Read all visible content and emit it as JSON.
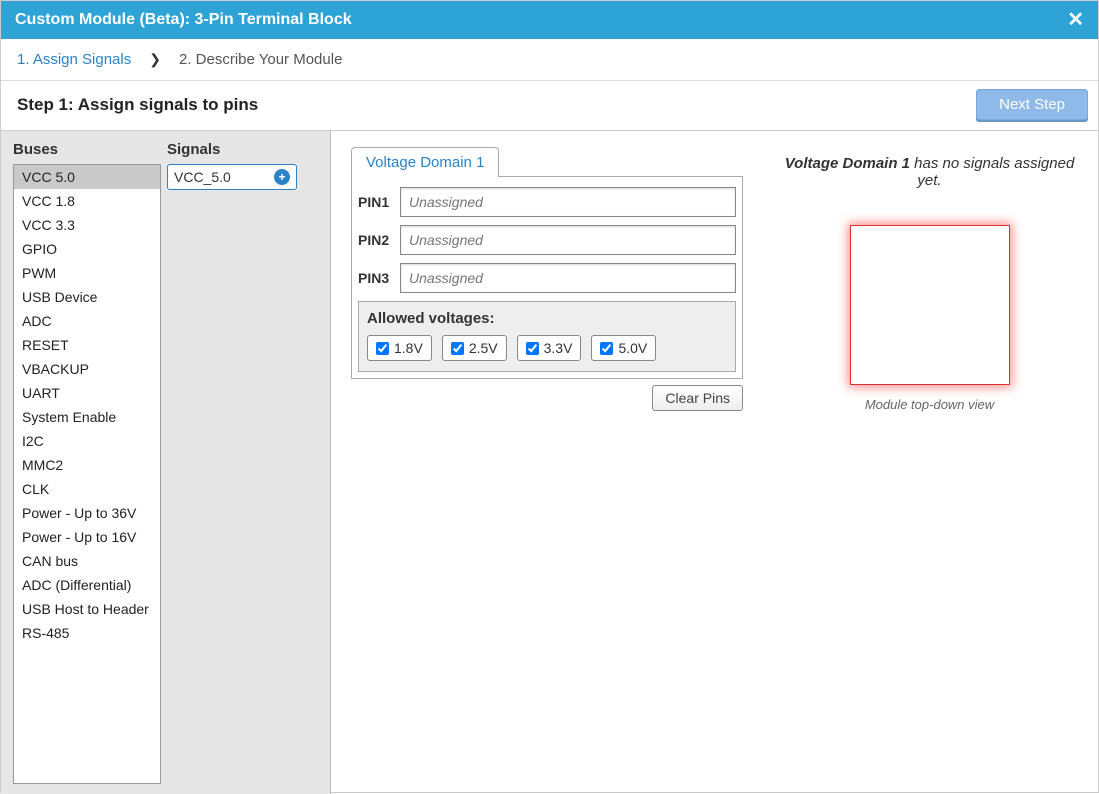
{
  "titlebar": {
    "title": "Custom Module (Beta): 3-Pin Terminal Block"
  },
  "breadcrumb": {
    "step1": "1. Assign Signals",
    "step2": "2. Describe Your Module"
  },
  "header": {
    "title": "Step 1: Assign signals to pins",
    "next_button": "Next Step"
  },
  "left": {
    "buses_header": "Buses",
    "signals_header": "Signals",
    "buses": [
      "VCC 5.0",
      "VCC 1.8",
      "VCC 3.3",
      "GPIO",
      "PWM",
      "USB Device",
      "ADC",
      "RESET",
      "VBACKUP",
      "UART",
      "System Enable",
      "I2C",
      "MMC2",
      "CLK",
      "Power - Up to 36V",
      "Power - Up to 16V",
      "CAN bus",
      "ADC (Differential)",
      "USB Host to Header",
      "RS-485"
    ],
    "selected_bus_index": 0,
    "signal_chip": "VCC_5.0"
  },
  "center": {
    "tab_label": "Voltage Domain 1",
    "pins": [
      {
        "label": "PIN1",
        "placeholder": "Unassigned"
      },
      {
        "label": "PIN2",
        "placeholder": "Unassigned"
      },
      {
        "label": "PIN3",
        "placeholder": "Unassigned"
      }
    ],
    "allowed_title": "Allowed voltages:",
    "voltages": [
      {
        "label": "1.8V",
        "checked": true
      },
      {
        "label": "2.5V",
        "checked": true
      },
      {
        "label": "3.3V",
        "checked": true
      },
      {
        "label": "5.0V",
        "checked": true
      }
    ],
    "clear_button": "Clear Pins"
  },
  "right": {
    "domain_name": "Voltage Domain 1",
    "msg_rest": " has no signals assigned yet.",
    "caption": "Module top-down view"
  },
  "colors": {
    "titlebar_bg": "#2ea3d6",
    "link": "#2a83c7",
    "next_btn_bg": "#8eb9e8",
    "module_border": "#d33",
    "left_pane_bg": "#e6e6e6"
  }
}
